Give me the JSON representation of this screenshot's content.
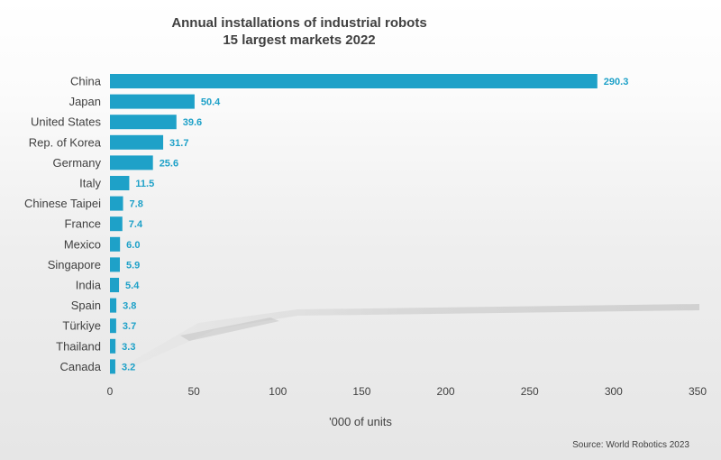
{
  "chart_data": {
    "type": "bar",
    "orientation": "horizontal",
    "title": [
      "Annual installations of industrial robots",
      "15 largest markets 2022"
    ],
    "categories": [
      "China",
      "Japan",
      "United States",
      "Rep. of Korea",
      "Germany",
      "Italy",
      "Chinese Taipei",
      "France",
      "Mexico",
      "Singapore",
      "India",
      "Spain",
      "Türkiye",
      "Thailand",
      "Canada"
    ],
    "values": [
      290.3,
      50.4,
      39.6,
      31.7,
      25.6,
      11.5,
      7.8,
      7.4,
      6.0,
      5.9,
      5.4,
      3.8,
      3.7,
      3.3,
      3.2
    ],
    "value_labels": [
      "290.3",
      "50.4",
      "39.6",
      "31.7",
      "25.6",
      "11.5",
      "7.8",
      "7.4",
      "6.0",
      "5.9",
      "5.4",
      "3.8",
      "3.7",
      "3.3",
      "3.2"
    ],
    "xlabel": "'000 of units",
    "ylabel": "",
    "xlim": [
      0,
      350
    ],
    "xticks": [
      "0",
      "50",
      "100",
      "150",
      "200",
      "250",
      "300",
      "350"
    ],
    "grid": false,
    "legend": "none",
    "source": "Source: World Robotics 2023",
    "colors": {
      "bar": "#1ea1c8",
      "value_label": "#1ea1c8",
      "text": "#404040"
    }
  }
}
